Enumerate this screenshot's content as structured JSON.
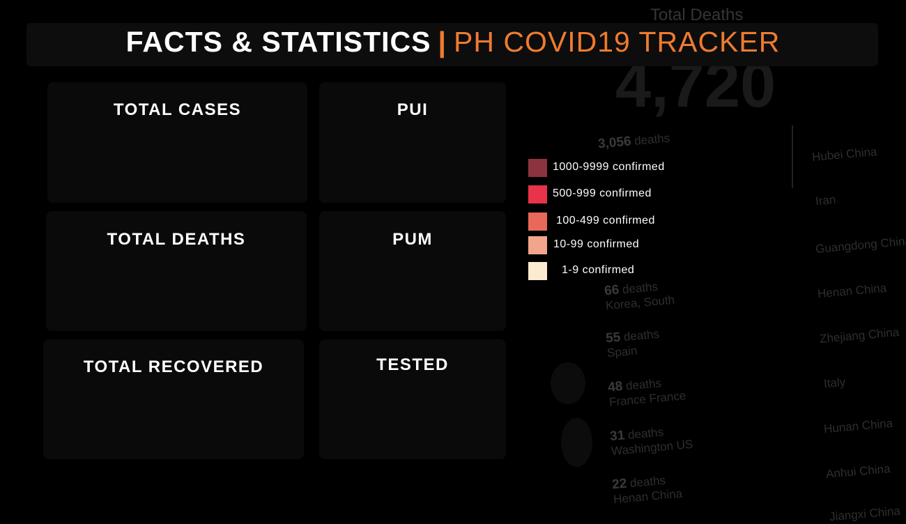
{
  "header": {
    "title_main": "FACTS & STATISTICS",
    "separator": "|",
    "title_sub": "PH COVID19 TRACKER"
  },
  "cards": {
    "total_cases": {
      "label": "TOTAL CASES"
    },
    "pui": {
      "label": "PUI"
    },
    "total_deaths": {
      "label": "TOTAL DEATHS"
    },
    "pum": {
      "label": "PUM"
    },
    "total_recovered": {
      "label": "TOTAL RECOVERED"
    },
    "tested": {
      "label": "TESTED"
    }
  },
  "legend": {
    "items": [
      {
        "label": "1000-9999 confirmed",
        "color": "#8b3440"
      },
      {
        "label": "500-999 confirmed",
        "color": "#e8334a"
      },
      {
        "label": "100-499 confirmed",
        "color": "#e8695a"
      },
      {
        "label": "10-99 confirmed",
        "color": "#f2a58c"
      },
      {
        "label": "1-9 confirmed",
        "color": "#fdebd0"
      }
    ]
  },
  "background": {
    "panel_title": "Total Deaths",
    "big_number": "4,720",
    "rows": [
      {
        "count": "3,056",
        "unit": "deaths"
      },
      {
        "count": "66",
        "unit": "deaths",
        "place": "Korea, South"
      },
      {
        "count": "55",
        "unit": "deaths",
        "place": "Spain"
      },
      {
        "count": "48",
        "unit": "deaths",
        "place": "France France"
      },
      {
        "count": "31",
        "unit": "deaths",
        "place": "Washington US"
      },
      {
        "count": "22",
        "unit": "deaths",
        "place": "Henan China"
      }
    ],
    "right_list": [
      "Hubei China",
      "Iran",
      "Guangdong China",
      "Henan China",
      "Zhejiang China",
      "Italy",
      "Hunan China",
      "Anhui China",
      "Jiangxi China"
    ]
  }
}
